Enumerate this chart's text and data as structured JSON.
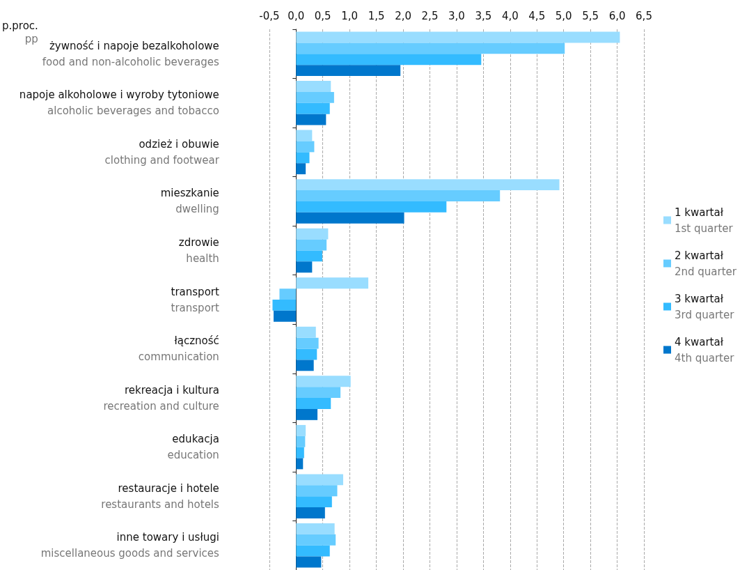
{
  "chart_data": {
    "type": "bar",
    "orientation": "horizontal",
    "xlabel": "p.proc.\npp",
    "categories": [
      "żywność i napoje bezalkoholowe\nfood and non-alcoholic beverages",
      "napoje alkoholowe i wyroby tytoniowe\nalcoholic beverages and tobacco",
      "odzież i obuwie\nclothing and footwear",
      "mieszkanie\ndwelling",
      "zdrowie\nhealth",
      "transport\ntransport",
      "łączność\ncommunication",
      "rekreacja i kultura\nrecreation and culture",
      "edukacja\neducation",
      "restauracje i hotele\nrestaurants and hotels",
      "inne towary i usługi\nmiscellaneous goods and services"
    ],
    "series": [
      {
        "name": "1 kwartał\n1st quarter",
        "color": "#99ddff",
        "values": [
          6.05,
          0.65,
          0.3,
          4.92,
          0.6,
          1.35,
          0.37,
          1.02,
          0.18,
          0.88,
          0.72
        ]
      },
      {
        "name": "2 kwartał\n2nd quarter",
        "color": "#66ccff",
        "values": [
          5.02,
          0.71,
          0.34,
          3.81,
          0.57,
          -0.31,
          0.42,
          0.83,
          0.17,
          0.77,
          0.74
        ]
      },
      {
        "name": "3 kwartał\n3rd quarter",
        "color": "#33bbff",
        "values": [
          3.46,
          0.63,
          0.25,
          2.81,
          0.49,
          -0.44,
          0.39,
          0.65,
          0.15,
          0.67,
          0.63
        ]
      },
      {
        "name": "4 kwartał\n4th quarter",
        "color": "#0077cc",
        "values": [
          1.95,
          0.56,
          0.18,
          2.02,
          0.3,
          -0.42,
          0.33,
          0.4,
          0.13,
          0.54,
          0.47
        ]
      }
    ],
    "xlim": [
      -0.5,
      6.5
    ],
    "xticks": [
      {
        "value": -0.5,
        "label": "-0,5"
      },
      {
        "value": 0,
        "label": "0,0"
      },
      {
        "value": 0.5,
        "label": "0,5"
      },
      {
        "value": 1,
        "label": "1,0"
      },
      {
        "value": 1.5,
        "label": "1,5"
      },
      {
        "value": 2,
        "label": "2,0"
      },
      {
        "value": 2.5,
        "label": "2,5"
      },
      {
        "value": 3,
        "label": "3,0"
      },
      {
        "value": 3.5,
        "label": "3,5"
      },
      {
        "value": 4,
        "label": "4,0"
      },
      {
        "value": 4.5,
        "label": "4,5"
      },
      {
        "value": 5,
        "label": "5,0"
      },
      {
        "value": 5.5,
        "label": "5,5"
      },
      {
        "value": 6,
        "label": "6,0"
      },
      {
        "value": 6.5,
        "label": "6,5"
      }
    ],
    "grid": "x",
    "legend": "right"
  }
}
